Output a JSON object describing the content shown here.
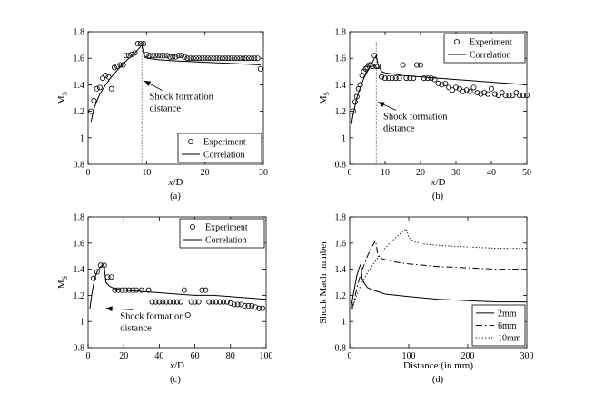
{
  "chart_data": [
    {
      "type": "scatter",
      "panel_label": "(a)",
      "xlabel_italic": "x",
      "xlabel_rest": "/D",
      "ylabel_main": "M",
      "ylabel_sub": "S",
      "xlim": [
        0,
        30
      ],
      "ylim": [
        0.8,
        1.8
      ],
      "xticks": [
        0,
        10,
        20,
        30
      ],
      "yticks": [
        0.8,
        1,
        1.2,
        1.4,
        1.6,
        1.8
      ],
      "legend_position": "bottom-right",
      "legend": [
        "Experiment",
        "Correlation"
      ],
      "annotation": {
        "lines": [
          "Shock formation",
          "distance"
        ],
        "arrow_to": [
          9.6,
          1.43
        ],
        "text_at": [
          10.5,
          1.29
        ]
      },
      "shock_formation_x": 9.2,
      "series": [
        {
          "name": "Experiment",
          "style": "markers",
          "x": [
            0.5,
            1,
            1.5,
            2,
            2.5,
            3,
            3.5,
            4,
            4.5,
            5,
            5.5,
            6,
            6.5,
            7,
            7.5,
            8,
            8.5,
            9,
            9.5,
            10,
            10.5,
            11,
            11.5,
            12,
            12.5,
            13,
            13.5,
            14,
            14.5,
            15,
            15.5,
            16,
            16.5,
            17,
            17.5,
            18,
            18.5,
            19,
            19.5,
            20,
            20.5,
            21,
            21.5,
            22,
            22.5,
            23,
            23.5,
            24,
            24.5,
            25,
            25.5,
            26,
            26.5,
            27,
            27.5,
            28,
            28.5,
            29,
            29.5
          ],
          "y": [
            1.2,
            1.28,
            1.37,
            1.38,
            1.45,
            1.47,
            1.46,
            1.37,
            1.53,
            1.54,
            1.55,
            1.55,
            1.62,
            1.62,
            1.63,
            1.64,
            1.71,
            1.71,
            1.71,
            1.63,
            1.62,
            1.62,
            1.62,
            1.62,
            1.62,
            1.62,
            1.62,
            1.61,
            1.61,
            1.61,
            1.62,
            1.62,
            1.61,
            1.6,
            1.6,
            1.6,
            1.6,
            1.6,
            1.6,
            1.6,
            1.6,
            1.6,
            1.6,
            1.6,
            1.6,
            1.6,
            1.6,
            1.6,
            1.6,
            1.6,
            1.6,
            1.6,
            1.6,
            1.6,
            1.6,
            1.6,
            1.6,
            1.6,
            1.52
          ]
        },
        {
          "name": "Correlation",
          "style": "solid",
          "x": [
            0.5,
            1,
            2,
            3,
            4,
            5,
            6,
            7,
            8,
            9.2,
            9.6,
            10.2,
            12,
            15,
            20,
            25,
            29.5
          ],
          "y": [
            1.12,
            1.22,
            1.33,
            1.4,
            1.46,
            1.51,
            1.56,
            1.6,
            1.64,
            1.7,
            1.61,
            1.6,
            1.59,
            1.58,
            1.57,
            1.56,
            1.55
          ]
        }
      ]
    },
    {
      "type": "scatter",
      "panel_label": "(b)",
      "xlabel_italic": "x",
      "xlabel_rest": "/D",
      "ylabel_main": "M",
      "ylabel_sub": "S",
      "xlim": [
        0,
        50
      ],
      "ylim": [
        0.8,
        1.8
      ],
      "xticks": [
        0,
        10,
        20,
        30,
        40,
        50
      ],
      "yticks": [
        0.8,
        1,
        1.2,
        1.4,
        1.6,
        1.8
      ],
      "legend_position": "top-right",
      "legend": [
        "Experiment",
        "Correlation"
      ],
      "annotation": {
        "lines": [
          "Shock formation",
          "distance"
        ],
        "arrow_to": [
          8,
          1.27
        ],
        "text_at": [
          9.5,
          1.14
        ]
      },
      "shock_formation_x": 7.5,
      "series": [
        {
          "name": "Experiment",
          "style": "markers",
          "x": [
            1,
            1.5,
            2,
            2.5,
            3,
            3.5,
            4,
            4.5,
            5,
            5.5,
            6,
            6.5,
            7,
            7.5,
            8,
            9,
            10,
            11,
            12,
            13,
            14,
            15,
            16,
            17,
            18,
            19,
            20,
            21,
            22,
            23,
            24,
            25,
            26,
            27,
            28,
            29,
            30,
            31,
            32,
            33,
            34,
            35,
            36,
            37,
            38,
            39,
            40,
            41,
            42,
            43,
            44,
            45,
            46,
            47,
            48,
            49,
            50
          ],
          "y": [
            1.2,
            1.27,
            1.31,
            1.37,
            1.4,
            1.47,
            1.5,
            1.52,
            1.53,
            1.55,
            1.55,
            1.54,
            1.62,
            1.54,
            1.54,
            1.46,
            1.45,
            1.45,
            1.45,
            1.45,
            1.45,
            1.55,
            1.45,
            1.45,
            1.45,
            1.55,
            1.55,
            1.45,
            1.45,
            1.45,
            1.44,
            1.41,
            1.4,
            1.41,
            1.38,
            1.36,
            1.38,
            1.37,
            1.35,
            1.36,
            1.35,
            1.38,
            1.34,
            1.33,
            1.34,
            1.33,
            1.37,
            1.33,
            1.32,
            1.34,
            1.32,
            1.32,
            1.32,
            1.34,
            1.32,
            1.32,
            1.32
          ]
        },
        {
          "name": "Correlation",
          "style": "solid",
          "x": [
            0.5,
            1,
            2,
            3,
            4,
            5,
            6,
            7,
            7.5,
            8,
            9,
            10,
            15,
            20,
            25,
            30,
            35,
            40,
            45,
            50
          ],
          "y": [
            1.1,
            1.18,
            1.3,
            1.38,
            1.45,
            1.5,
            1.55,
            1.6,
            1.62,
            1.55,
            1.5,
            1.49,
            1.47,
            1.46,
            1.45,
            1.44,
            1.43,
            1.42,
            1.41,
            1.4
          ]
        }
      ]
    },
    {
      "type": "scatter",
      "panel_label": "(c)",
      "xlabel_italic": "x",
      "xlabel_rest": "/D",
      "ylabel_main": "M",
      "ylabel_sub": "S",
      "xlim": [
        0,
        100
      ],
      "ylim": [
        0.8,
        1.8
      ],
      "xticks": [
        0,
        20,
        40,
        60,
        80,
        100
      ],
      "yticks": [
        0.8,
        1,
        1.2,
        1.4,
        1.6,
        1.8
      ],
      "legend_position": "top-right",
      "legend": [
        "Experiment",
        "Correlation"
      ],
      "annotation": {
        "lines": [
          "Shock formation",
          "distance"
        ],
        "arrow_to": [
          10,
          1.1
        ],
        "text_at": [
          18,
          1.02
        ]
      },
      "shock_formation_x": 9,
      "series": [
        {
          "name": "Experiment",
          "style": "markers",
          "x": [
            3,
            5,
            7,
            9,
            11,
            13,
            15,
            17,
            19,
            21,
            23,
            25,
            27,
            30,
            34,
            36,
            38,
            40,
            42,
            44,
            46,
            48,
            50,
            52,
            54,
            56,
            58,
            60,
            62,
            64,
            66,
            68,
            70,
            72,
            74,
            76,
            78,
            80,
            82,
            84,
            86,
            88,
            90,
            92,
            94,
            96,
            98
          ],
          "y": [
            1.33,
            1.38,
            1.43,
            1.43,
            1.34,
            1.34,
            1.24,
            1.24,
            1.24,
            1.24,
            1.24,
            1.24,
            1.24,
            1.24,
            1.24,
            1.15,
            1.15,
            1.15,
            1.15,
            1.15,
            1.15,
            1.15,
            1.15,
            1.15,
            1.24,
            1.05,
            1.15,
            1.15,
            1.15,
            1.24,
            1.24,
            1.15,
            1.15,
            1.15,
            1.15,
            1.15,
            1.15,
            1.14,
            1.13,
            1.13,
            1.13,
            1.12,
            1.12,
            1.12,
            1.11,
            1.1,
            1.1
          ]
        },
        {
          "name": "Correlation",
          "style": "solid",
          "x": [
            1,
            2,
            3,
            4,
            5,
            6,
            7,
            8,
            9,
            10,
            12,
            15,
            20,
            30,
            40,
            50,
            60,
            70,
            80,
            90,
            100
          ],
          "y": [
            1.1,
            1.2,
            1.28,
            1.34,
            1.38,
            1.4,
            1.42,
            1.43,
            1.43,
            1.3,
            1.27,
            1.25,
            1.24,
            1.23,
            1.22,
            1.21,
            1.2,
            1.2,
            1.19,
            1.18,
            1.17
          ]
        }
      ]
    },
    {
      "type": "line",
      "panel_label": "(d)",
      "xlabel_plain": "Distance (in mm)",
      "ylabel_plain": "Shock Mach number",
      "xlim": [
        0,
        300
      ],
      "ylim": [
        0.8,
        1.8
      ],
      "xticks": [
        0,
        100,
        200,
        300
      ],
      "yticks": [
        0.8,
        1,
        1.2,
        1.4,
        1.6,
        1.8
      ],
      "legend_position": "bottom-right",
      "legend": [
        "2mm",
        "6mm",
        "10mm"
      ],
      "series": [
        {
          "name": "2mm",
          "style": "solid",
          "x": [
            2,
            4,
            6,
            8,
            10,
            12,
            14,
            16,
            18,
            19,
            21,
            25,
            30,
            40,
            60,
            100,
            150,
            200,
            250,
            300
          ],
          "y": [
            1.1,
            1.15,
            1.2,
            1.25,
            1.3,
            1.35,
            1.38,
            1.41,
            1.43,
            1.44,
            1.33,
            1.29,
            1.26,
            1.24,
            1.21,
            1.19,
            1.17,
            1.16,
            1.15,
            1.15
          ]
        },
        {
          "name": "6mm",
          "style": "dashdot",
          "x": [
            4,
            8,
            12,
            16,
            20,
            25,
            30,
            35,
            40,
            44,
            48,
            55,
            70,
            100,
            150,
            200,
            250,
            300
          ],
          "y": [
            1.1,
            1.17,
            1.25,
            1.32,
            1.38,
            1.44,
            1.5,
            1.55,
            1.59,
            1.62,
            1.5,
            1.48,
            1.46,
            1.44,
            1.42,
            1.41,
            1.4,
            1.4
          ]
        },
        {
          "name": "10mm",
          "style": "dotted",
          "x": [
            5,
            10,
            20,
            30,
            40,
            50,
            60,
            70,
            80,
            90,
            96,
            100,
            110,
            130,
            160,
            200,
            250,
            300
          ],
          "y": [
            1.1,
            1.18,
            1.29,
            1.37,
            1.44,
            1.5,
            1.56,
            1.61,
            1.65,
            1.69,
            1.71,
            1.64,
            1.61,
            1.59,
            1.58,
            1.57,
            1.56,
            1.56
          ]
        }
      ]
    }
  ]
}
